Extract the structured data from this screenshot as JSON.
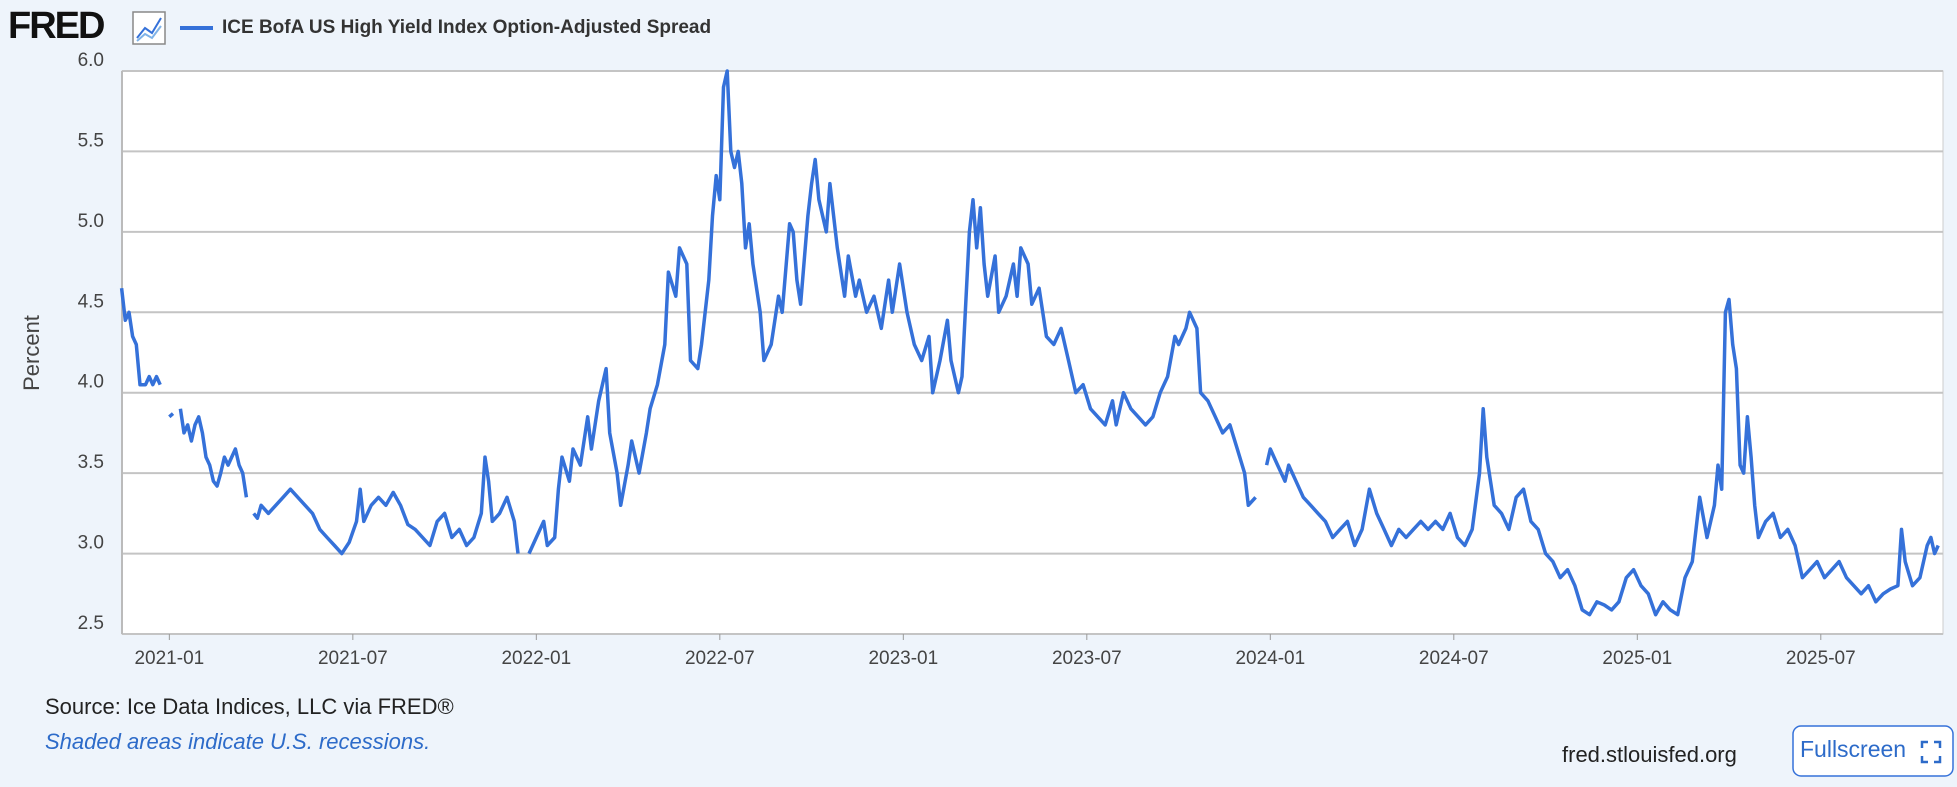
{
  "header": {
    "logo": "FRED",
    "button": "Fullscreen",
    "url": "fred.stlouisfed.org"
  },
  "chart_data": {
    "type": "line",
    "title": "ICE BofA US High Yield Index Option-Adjusted Spread",
    "y_label": "Percent",
    "source": "Source: Ice Data Indices, LLC via FRED®",
    "note": "Shaded areas indicate U.S. recessions.",
    "xlim": [
      2020.871,
      2025.833
    ],
    "xticks": [
      {
        "value": 2021,
        "label": "2021-01"
      },
      {
        "value": 2021.5,
        "label": "2021-07"
      },
      {
        "value": 2022,
        "label": "2022-01"
      },
      {
        "value": 2022.5,
        "label": "2022-07"
      },
      {
        "value": 2023,
        "label": "2023-01"
      },
      {
        "value": 2023.5,
        "label": "2023-07"
      },
      {
        "value": 2024,
        "label": "2024-01"
      },
      {
        "value": 2024.5,
        "label": "2024-07"
      },
      {
        "value": 2025,
        "label": "2025-01"
      },
      {
        "value": 2025.5,
        "label": "2025-07"
      }
    ],
    "ylim": [
      2.5,
      6.0
    ],
    "yticks": [
      2.5,
      {
        "value": 3,
        "label": "3.0"
      },
      3.5,
      {
        "value": 4,
        "label": "4.0"
      },
      4.5,
      {
        "value": 5,
        "label": "5.0"
      },
      5.5,
      {
        "value": 6,
        "label": "6.0"
      }
    ],
    "grid": true,
    "series": [
      {
        "name": "ICE BofA US High Yield Index Option-Adjusted Spread",
        "color": "#3571d9",
        "x": [
          2020.87,
          2020.88,
          2020.89,
          2020.9,
          2020.91,
          2020.92,
          2020.935,
          2020.945,
          2020.955,
          2020.965,
          2020.975,
          2020.985,
          2021.0,
          2021.01,
          2021.02,
          2021.03,
          2021.04,
          2021.05,
          2021.06,
          2021.07,
          2021.08,
          2021.09,
          2021.1,
          2021.11,
          2021.12,
          2021.13,
          2021.14,
          2021.15,
          2021.16,
          2021.17,
          2021.18,
          2021.19,
          2021.2,
          2021.21,
          2021.22,
          2021.23,
          2021.24,
          2021.25,
          2021.27,
          2021.29,
          2021.31,
          2021.33,
          2021.35,
          2021.37,
          2021.39,
          2021.41,
          2021.43,
          2021.45,
          2021.47,
          2021.49,
          2021.51,
          2021.52,
          2021.53,
          2021.55,
          2021.57,
          2021.59,
          2021.61,
          2021.63,
          2021.65,
          2021.67,
          2021.69,
          2021.71,
          2021.73,
          2021.75,
          2021.77,
          2021.79,
          2021.81,
          2021.83,
          2021.85,
          2021.86,
          2021.87,
          2021.88,
          2021.9,
          2021.92,
          2021.94,
          2021.95,
          2021.965,
          2021.98,
          2022.0,
          2022.02,
          2022.03,
          2022.05,
          2022.06,
          2022.07,
          2022.09,
          2022.1,
          2022.12,
          2022.14,
          2022.15,
          2022.17,
          2022.19,
          2022.2,
          2022.22,
          2022.23,
          2022.25,
          2022.26,
          2022.28,
          2022.3,
          2022.31,
          2022.33,
          2022.35,
          2022.36,
          2022.38,
          2022.39,
          2022.41,
          2022.42,
          2022.44,
          2022.45,
          2022.47,
          2022.48,
          2022.49,
          2022.5,
          2022.51,
          2022.52,
          2022.53,
          2022.54,
          2022.55,
          2022.56,
          2022.57,
          2022.58,
          2022.59,
          2022.61,
          2022.62,
          2022.64,
          2022.66,
          2022.67,
          2022.69,
          2022.7,
          2022.71,
          2022.72,
          2022.74,
          2022.75,
          2022.76,
          2022.77,
          2022.79,
          2022.8,
          2022.82,
          2022.84,
          2022.85,
          2022.87,
          2022.88,
          2022.9,
          2022.92,
          2022.94,
          2022.96,
          2022.97,
          2022.99,
          2023.01,
          2023.03,
          2023.05,
          2023.07,
          2023.08,
          2023.1,
          2023.12,
          2023.13,
          2023.15,
          2023.16,
          2023.18,
          2023.19,
          2023.2,
          2023.21,
          2023.22,
          2023.23,
          2023.25,
          2023.26,
          2023.28,
          2023.3,
          2023.31,
          2023.32,
          2023.34,
          2023.35,
          2023.37,
          2023.39,
          2023.41,
          2023.43,
          2023.45,
          2023.47,
          2023.49,
          2023.51,
          2023.53,
          2023.55,
          2023.57,
          2023.58,
          2023.6,
          2023.62,
          2023.64,
          2023.66,
          2023.68,
          2023.7,
          2023.72,
          2023.74,
          2023.75,
          2023.77,
          2023.78,
          2023.8,
          2023.81,
          2023.83,
          2023.85,
          2023.87,
          2023.89,
          2023.91,
          2023.93,
          2023.94,
          2023.96,
          2023.975,
          2023.99,
          2024.0,
          2024.02,
          2024.04,
          2024.05,
          2024.07,
          2024.09,
          2024.11,
          2024.13,
          2024.15,
          2024.17,
          2024.19,
          2024.21,
          2024.23,
          2024.25,
          2024.27,
          2024.29,
          2024.31,
          2024.33,
          2024.35,
          2024.37,
          2024.39,
          2024.41,
          2024.43,
          2024.45,
          2024.47,
          2024.49,
          2024.51,
          2024.53,
          2024.55,
          2024.57,
          2024.58,
          2024.59,
          2024.61,
          2024.63,
          2024.65,
          2024.67,
          2024.69,
          2024.71,
          2024.73,
          2024.75,
          2024.77,
          2024.79,
          2024.81,
          2024.83,
          2024.85,
          2024.87,
          2024.89,
          2024.91,
          2024.93,
          2024.95,
          2024.97,
          2024.99,
          2025.01,
          2025.03,
          2025.05,
          2025.07,
          2025.09,
          2025.11,
          2025.13,
          2025.15,
          2025.17,
          2025.19,
          2025.21,
          2025.22,
          2025.23,
          2025.24,
          2025.25,
          2025.26,
          2025.27,
          2025.28,
          2025.29,
          2025.3,
          2025.31,
          2025.32,
          2025.33,
          2025.35,
          2025.37,
          2025.39,
          2025.41,
          2025.43,
          2025.45,
          2025.47,
          2025.49,
          2025.51,
          2025.53,
          2025.55,
          2025.57,
          2025.59,
          2025.61,
          2025.63,
          2025.65,
          2025.67,
          2025.69,
          2025.71,
          2025.72,
          2025.73,
          2025.75,
          2025.77,
          2025.79,
          2025.8,
          2025.81,
          2025.82
        ],
        "values": [
          4.65,
          4.45,
          4.5,
          4.35,
          4.3,
          4.05,
          4.05,
          4.1,
          4.05,
          4.1,
          4.05,
          null,
          3.85,
          3.87,
          null,
          3.9,
          3.75,
          3.8,
          3.7,
          3.8,
          3.85,
          3.75,
          3.6,
          3.55,
          3.45,
          3.42,
          3.5,
          3.6,
          3.55,
          3.6,
          3.65,
          3.55,
          3.5,
          3.35,
          null,
          3.25,
          3.22,
          3.3,
          3.25,
          3.3,
          3.35,
          3.4,
          3.35,
          3.3,
          3.25,
          3.15,
          3.1,
          3.05,
          3.0,
          3.07,
          3.2,
          3.4,
          3.2,
          3.3,
          3.35,
          3.3,
          3.38,
          3.3,
          3.18,
          3.15,
          3.1,
          3.05,
          3.2,
          3.25,
          3.1,
          3.15,
          3.05,
          3.1,
          3.25,
          3.6,
          3.45,
          3.2,
          3.25,
          3.35,
          3.2,
          3.0,
          null,
          3.0,
          3.1,
          3.2,
          3.05,
          3.1,
          3.4,
          3.6,
          3.45,
          3.65,
          3.55,
          3.85,
          3.65,
          3.95,
          4.15,
          3.75,
          3.5,
          3.3,
          3.55,
          3.7,
          3.5,
          3.75,
          3.9,
          4.05,
          4.3,
          4.75,
          4.6,
          4.9,
          4.8,
          4.2,
          4.15,
          4.3,
          4.7,
          5.1,
          5.35,
          5.2,
          5.9,
          6.0,
          5.5,
          5.4,
          5.5,
          5.3,
          4.9,
          5.05,
          4.8,
          4.5,
          4.2,
          4.3,
          4.6,
          4.5,
          5.05,
          5.0,
          4.7,
          4.55,
          5.1,
          5.3,
          5.45,
          5.2,
          5.0,
          5.3,
          4.9,
          4.6,
          4.85,
          4.6,
          4.7,
          4.5,
          4.6,
          4.4,
          4.7,
          4.5,
          4.8,
          4.5,
          4.3,
          4.2,
          4.35,
          4.0,
          4.2,
          4.45,
          4.2,
          4.0,
          4.1,
          5.0,
          5.2,
          4.9,
          5.15,
          4.8,
          4.6,
          4.85,
          4.5,
          4.6,
          4.8,
          4.6,
          4.9,
          4.8,
          4.55,
          4.65,
          4.35,
          4.3,
          4.4,
          4.2,
          4.0,
          4.05,
          3.9,
          3.85,
          3.8,
          3.95,
          3.8,
          4.0,
          3.9,
          3.85,
          3.8,
          3.85,
          4.0,
          4.1,
          4.35,
          4.3,
          4.4,
          4.5,
          4.4,
          4.0,
          3.95,
          3.85,
          3.75,
          3.8,
          3.65,
          3.5,
          3.3,
          3.35,
          null,
          3.55,
          3.65,
          3.55,
          3.45,
          3.55,
          3.45,
          3.35,
          3.3,
          3.25,
          3.2,
          3.1,
          3.15,
          3.2,
          3.05,
          3.15,
          3.4,
          3.25,
          3.15,
          3.05,
          3.15,
          3.1,
          3.15,
          3.2,
          3.15,
          3.2,
          3.15,
          3.25,
          3.1,
          3.05,
          3.15,
          3.5,
          3.9,
          3.6,
          3.3,
          3.25,
          3.15,
          3.35,
          3.4,
          3.2,
          3.15,
          3.0,
          2.95,
          2.85,
          2.9,
          2.8,
          2.65,
          2.62,
          2.7,
          2.68,
          2.65,
          2.7,
          2.85,
          2.9,
          2.8,
          2.75,
          2.62,
          2.7,
          2.65,
          2.62,
          2.85,
          2.95,
          3.35,
          3.1,
          3.3,
          3.55,
          3.4,
          4.5,
          4.58,
          4.3,
          4.15,
          3.55,
          3.5,
          3.85,
          3.6,
          3.3,
          3.1,
          3.2,
          3.25,
          3.1,
          3.15,
          3.05,
          2.85,
          2.9,
          2.95,
          2.85,
          2.9,
          2.95,
          2.85,
          2.8,
          2.75,
          2.8,
          2.7,
          2.75,
          2.78,
          2.8,
          3.15,
          2.95,
          2.8,
          2.85,
          3.05,
          3.1,
          3.0,
          3.05
        ]
      }
    ]
  }
}
